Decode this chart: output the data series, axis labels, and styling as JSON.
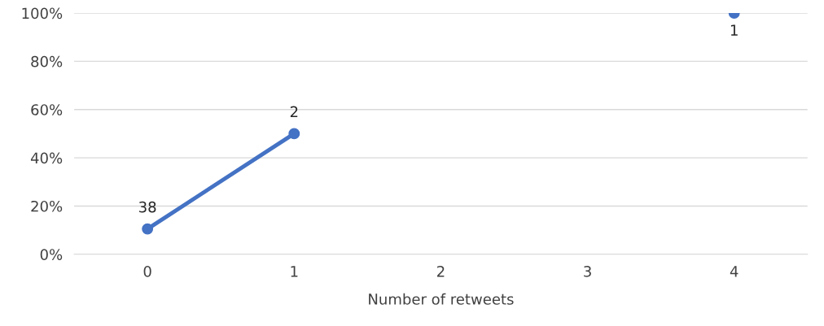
{
  "chart_data": {
    "type": "line",
    "xlabel": "Number of retweets",
    "categories": [
      "0",
      "1",
      "2",
      "3",
      "4"
    ],
    "series": [
      {
        "color": "#4472c4",
        "values": [
          10.5,
          50,
          null,
          null,
          100
        ]
      }
    ],
    "annotations": [
      {
        "text": "38",
        "x": "0",
        "y": 10.5
      },
      {
        "text": "2",
        "x": "1",
        "y": 50
      },
      {
        "text": "1",
        "x": "4",
        "y": 100
      }
    ],
    "ylim": [
      0,
      100
    ],
    "yticks": [
      {
        "value": 0,
        "label": "0%"
      },
      {
        "value": 20,
        "label": "20%"
      },
      {
        "value": 40,
        "label": "40%"
      },
      {
        "value": 60,
        "label": "60%"
      },
      {
        "value": 80,
        "label": "80%"
      },
      {
        "value": 100,
        "label": "100%"
      }
    ],
    "grid": "y",
    "marker": "circle",
    "line_style": "solid"
  }
}
